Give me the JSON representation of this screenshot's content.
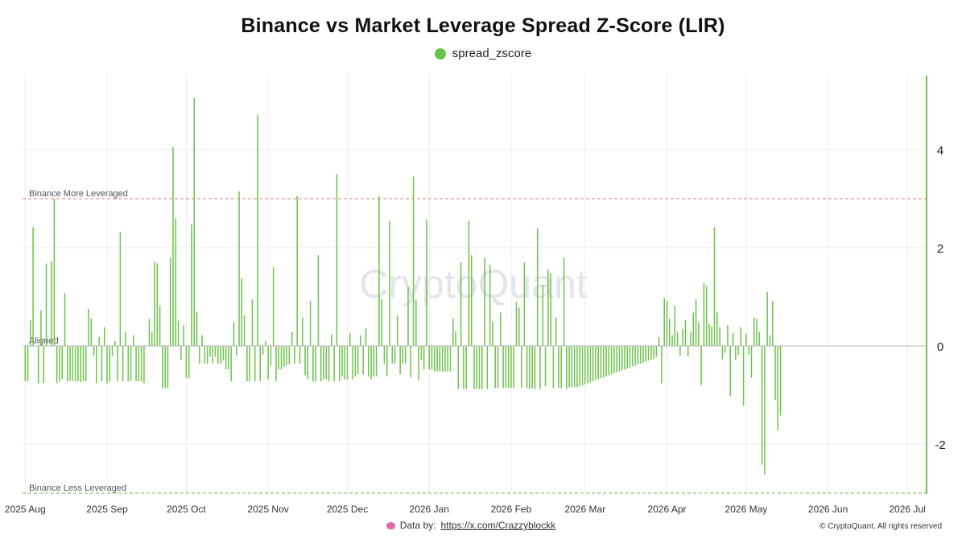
{
  "title": "Binance vs Market Leverage Spread Z-Score (LIR)",
  "legend": {
    "label": "spread_zscore"
  },
  "colors": {
    "bar": "#6cc24a",
    "upper_line": "#e07b7b",
    "lower_line": "#6cc24a",
    "grid": "#ececec",
    "watermark": "#e4e4ec"
  },
  "watermark": "CryptoQuant",
  "footer": {
    "prefix": "Data by:",
    "link": "https://x.com/Crazzyblockk",
    "copyright": "© CryptoQuant. All rights reserved"
  },
  "chart_data": {
    "type": "bar",
    "title": "Binance vs Market Leverage Spread Z-Score (LIR)",
    "series_name": "spread_zscore",
    "x_range": [
      "2025-07-31",
      "2026-07-08"
    ],
    "ylim": [
      -3.0,
      5.4
    ],
    "y_ticks": [
      4,
      2,
      0,
      -2
    ],
    "x_ticks": [
      {
        "date": "2025-08-01",
        "label": "2025 Aug"
      },
      {
        "date": "2025-09-01",
        "label": "2025 Sep"
      },
      {
        "date": "2025-10-01",
        "label": "2025 Oct"
      },
      {
        "date": "2025-11-01",
        "label": "2025 Nov"
      },
      {
        "date": "2025-12-01",
        "label": "2025 Dec"
      },
      {
        "date": "2026-01-01",
        "label": "2026 Jan"
      },
      {
        "date": "2026-02-01",
        "label": "2026 Feb"
      },
      {
        "date": "2026-03-01",
        "label": "2026 Mar"
      },
      {
        "date": "2026-04-01",
        "label": "2026 Apr"
      },
      {
        "date": "2026-05-01",
        "label": "2026 May"
      },
      {
        "date": "2026-06-01",
        "label": "2026 Jun"
      },
      {
        "date": "2026-07-01",
        "label": "2026 Jul"
      }
    ],
    "reference_lines": [
      {
        "label": "Binance More Leveraged",
        "y": 3.0,
        "color": "#e07b7b"
      },
      {
        "label": "Aligned",
        "y": 0.0,
        "color": "#888888"
      },
      {
        "label": "Binance Less Leveraged",
        "y": -3.0,
        "color": "#6cc24a"
      }
    ],
    "start_date": "2025-08-01",
    "values": [
      -0.72,
      -0.72,
      0.52,
      2.42,
      0.0,
      -0.76,
      0.72,
      -0.76,
      1.68,
      0.0,
      1.72,
      3.0,
      -0.76,
      -0.72,
      -0.68,
      1.08,
      -0.72,
      -0.71,
      -0.72,
      -0.72,
      -0.72,
      -0.74,
      -0.72,
      -0.72,
      0.76,
      0.56,
      -0.2,
      -0.76,
      0.18,
      -0.72,
      0.38,
      -0.76,
      -0.72,
      -0.2,
      0.1,
      -0.72,
      2.32,
      -0.72,
      0.28,
      -0.72,
      -0.72,
      0.22,
      -0.72,
      -0.72,
      -0.72,
      -0.76,
      0.0,
      0.55,
      0.28,
      1.72,
      1.68,
      0.82,
      -0.86,
      -0.86,
      -0.86,
      1.8,
      4.05,
      2.6,
      0.52,
      -0.28,
      0.42,
      -0.66,
      -0.66,
      2.48,
      5.05,
      0.7,
      -0.36,
      0.22,
      -0.36,
      -0.36,
      -0.22,
      -0.36,
      -0.22,
      -0.36,
      -0.36,
      -0.3,
      -0.48,
      -0.48,
      -0.72,
      0.48,
      -0.2,
      3.15,
      1.38,
      0.62,
      -0.72,
      -0.72,
      0.95,
      -0.72,
      4.7,
      -0.72,
      -0.18,
      0.1,
      -0.68,
      -0.4,
      1.6,
      -0.72,
      -0.48,
      -0.48,
      -0.42,
      -0.4,
      -0.38,
      0.28,
      -0.36,
      3.05,
      -0.36,
      0.58,
      -0.6,
      -0.68,
      0.92,
      -0.72,
      -0.72,
      1.85,
      -0.72,
      -0.68,
      -0.68,
      -0.72,
      0.24,
      -0.72,
      3.5,
      -0.72,
      -0.62,
      -0.68,
      -0.68,
      0.26,
      -0.68,
      -0.62,
      -0.58,
      0.22,
      -0.58,
      0.36,
      -0.62,
      -0.68,
      -0.62,
      -0.62,
      3.05,
      0.95,
      -0.36,
      -0.62,
      2.55,
      -0.36,
      -0.36,
      0.62,
      -0.58,
      -0.36,
      -0.36,
      1.2,
      -0.64,
      3.45,
      0.94,
      -0.7,
      -0.28,
      -0.48,
      2.58,
      -0.48,
      -0.48,
      -0.52,
      -0.52,
      -0.52,
      -0.52,
      -0.52,
      -0.52,
      -0.52,
      0.56,
      0.3,
      -0.88,
      1.7,
      -0.88,
      -0.88,
      2.55,
      1.85,
      -0.88,
      -0.88,
      -0.88,
      -0.88,
      1.8,
      -0.88,
      1.65,
      0.5,
      -0.86,
      -0.86,
      0.68,
      -0.86,
      -0.86,
      -0.86,
      -0.86,
      -0.86,
      0.9,
      0.78,
      -0.86,
      1.7,
      -0.86,
      -0.88,
      -0.86,
      -0.88,
      2.4,
      -0.88,
      1.25,
      -0.82,
      1.55,
      1.48,
      -0.86,
      0.58,
      -0.86,
      -0.86,
      1.8,
      -0.88,
      -0.84,
      -0.84,
      -0.84,
      -0.84,
      -0.82,
      -0.8,
      -0.78,
      -0.76,
      -0.74,
      -0.72,
      -0.7,
      -0.68,
      -0.66,
      -0.64,
      -0.62,
      -0.6,
      -0.58,
      -0.56,
      -0.54,
      -0.52,
      -0.5,
      -0.48,
      -0.46,
      -0.44,
      -0.42,
      -0.4,
      -0.38,
      -0.36,
      -0.34,
      -0.32,
      -0.3,
      -0.28,
      -0.26,
      -0.22,
      0.18,
      -0.76,
      0.98,
      0.92,
      0.55,
      0.22,
      0.82,
      0.28,
      -0.2,
      0.35,
      0.52,
      -0.22,
      0.28,
      0.68,
      0.95,
      0.48,
      -0.8,
      1.28,
      1.22,
      0.45,
      0.4,
      2.42,
      0.68,
      0.38,
      -0.28,
      -0.14,
      0.42,
      -1.02,
      0.26,
      -0.28,
      -0.18,
      0.38,
      -1.22,
      0.25,
      -0.18,
      -0.65,
      0.58,
      0.55,
      0.28,
      -2.42,
      -2.62,
      1.1,
      0.22,
      0.92,
      -1.1,
      -1.72,
      -1.42
    ]
  }
}
